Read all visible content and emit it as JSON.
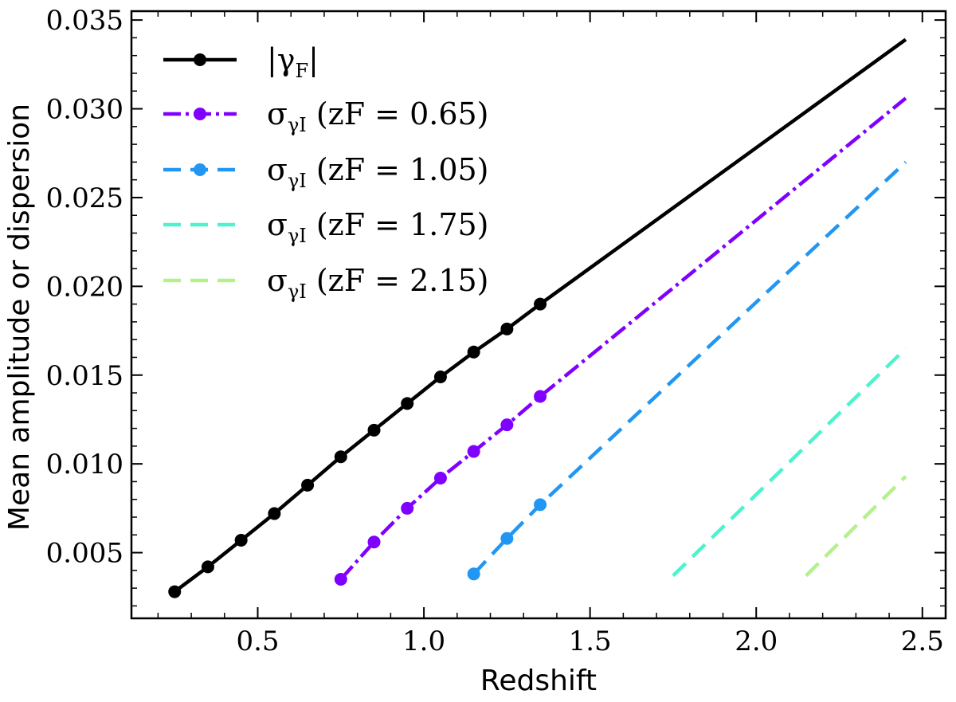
{
  "chart_data": {
    "type": "line",
    "xlabel": "Redshift",
    "ylabel": "Mean amplitude or dispersion",
    "xlim": [
      0.12,
      2.57
    ],
    "ylim": [
      0.0013,
      0.0355
    ],
    "xticks": [
      0.5,
      1.0,
      1.5,
      2.0,
      2.5
    ],
    "xtick_labels": [
      "0.5",
      "1.0",
      "1.5",
      "2.0",
      "2.5"
    ],
    "yticks": [
      0.005,
      0.01,
      0.015,
      0.02,
      0.025,
      0.03,
      0.035
    ],
    "ytick_labels": [
      "0.005",
      "0.010",
      "0.015",
      "0.020",
      "0.025",
      "0.030",
      "0.035"
    ],
    "legend_position": "top-left",
    "series": [
      {
        "name": "|γF|",
        "label_main": "|γ",
        "label_sub": "F",
        "label_tail": "|",
        "color": "#000000",
        "style": "solid",
        "x": [
          0.25,
          0.35,
          0.45,
          0.55,
          0.65,
          0.75,
          0.85,
          0.95,
          1.05,
          1.15,
          1.25,
          1.35
        ],
        "y": [
          0.0028,
          0.0042,
          0.0057,
          0.0072,
          0.0088,
          0.0104,
          0.0119,
          0.0134,
          0.0149,
          0.0163,
          0.0176,
          0.019
        ],
        "line_extension": {
          "x": [
            1.35,
            2.45
          ],
          "y": [
            0.019,
            0.0339
          ]
        }
      },
      {
        "name": "σγI (zF = 0.65)",
        "label_main": "σ",
        "label_sub": "γI",
        "label_tail": " (zF = 0.65)",
        "color": "#8000ff",
        "style": "dashdot",
        "x": [
          0.75,
          0.85,
          0.95,
          1.05,
          1.15,
          1.25,
          1.35
        ],
        "y": [
          0.0035,
          0.0056,
          0.0075,
          0.0092,
          0.0107,
          0.0122,
          0.0138
        ],
        "line_extension": {
          "x": [
            1.35,
            2.45
          ],
          "y": [
            0.0138,
            0.0306
          ]
        }
      },
      {
        "name": "σγI (zF = 1.05)",
        "label_main": "σ",
        "label_sub": "γI",
        "label_tail": " (zF = 1.05)",
        "color": "#2196f3",
        "style": "dashed",
        "x": [
          1.15,
          1.25,
          1.35
        ],
        "y": [
          0.0038,
          0.0058,
          0.0077
        ],
        "line_extension": {
          "x": [
            1.35,
            2.45
          ],
          "y": [
            0.0077,
            0.027
          ]
        }
      },
      {
        "name": "σγI (zF = 1.75)",
        "label_main": "σ",
        "label_sub": "γI",
        "label_tail": " (zF = 1.75)",
        "color": "#4df3ce",
        "style": "dashed",
        "x": [],
        "y": [],
        "line_extension": {
          "x": [
            1.75,
            2.45
          ],
          "y": [
            0.0037,
            0.0165
          ]
        }
      },
      {
        "name": "σγI (zF = 2.15)",
        "label_main": "σ",
        "label_sub": "γI",
        "label_tail": " (zF = 2.15)",
        "color": "#b3f28a",
        "style": "dashed",
        "x": [],
        "y": [],
        "line_extension": {
          "x": [
            2.15,
            2.45
          ],
          "y": [
            0.0037,
            0.0093
          ]
        }
      }
    ]
  }
}
